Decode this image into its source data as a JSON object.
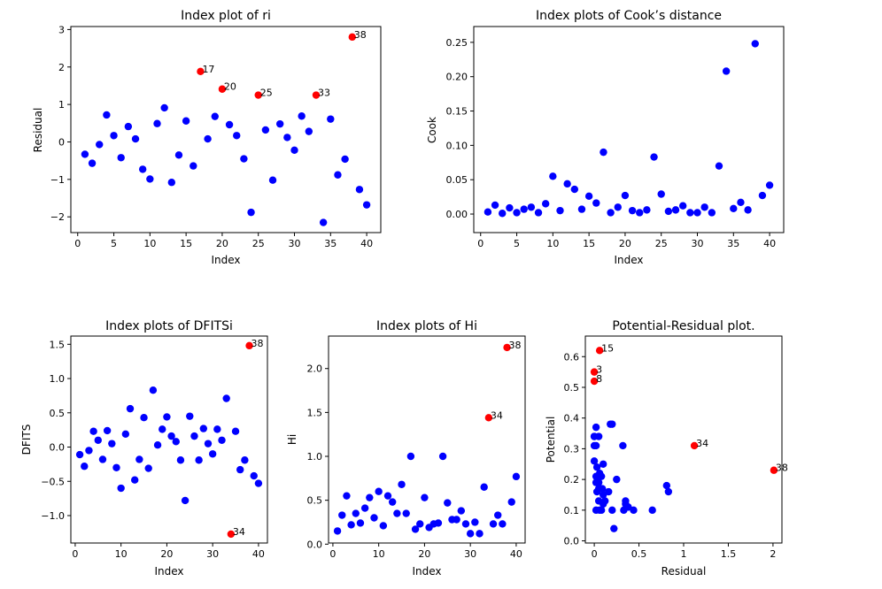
{
  "colors": {
    "normal": "#0000ff",
    "highlight": "#ff0000",
    "axis": "#000000"
  },
  "chart_data": [
    {
      "type": "scatter",
      "title": "Index plot of ri",
      "xlabel": "Index",
      "ylabel": "Residual",
      "xlim": [
        -0.95,
        41.95
      ],
      "ylim": [
        -2.42,
        3.08
      ],
      "xticks": [
        0,
        5,
        10,
        15,
        20,
        25,
        30,
        35,
        40
      ],
      "yticks": [
        -2,
        -1,
        0,
        1,
        2,
        3
      ],
      "ytick_labels": [
        "−2",
        "−1",
        "0",
        "1",
        "2",
        "3"
      ],
      "x": [
        1,
        2,
        3,
        4,
        5,
        6,
        7,
        8,
        9,
        10,
        11,
        12,
        13,
        14,
        15,
        16,
        17,
        18,
        19,
        20,
        21,
        22,
        23,
        24,
        25,
        26,
        27,
        28,
        29,
        30,
        31,
        32,
        33,
        34,
        35,
        36,
        37,
        38,
        39,
        40
      ],
      "y": [
        -0.33,
        -0.57,
        -0.07,
        0.72,
        0.17,
        -0.42,
        0.41,
        0.08,
        -0.73,
        -0.99,
        0.49,
        0.91,
        -1.08,
        -0.35,
        0.56,
        -0.64,
        1.88,
        0.08,
        0.68,
        1.41,
        0.46,
        0.17,
        -0.45,
        -1.88,
        1.25,
        0.32,
        -1.02,
        0.48,
        0.12,
        -0.22,
        0.69,
        0.28,
        1.25,
        -2.15,
        0.61,
        -0.88,
        -0.46,
        2.8,
        -1.27,
        -1.68
      ],
      "highlight_indices": [
        16,
        19,
        24,
        32,
        37
      ],
      "annotations": [
        {
          "x": 17,
          "y": 1.88,
          "text": "17"
        },
        {
          "x": 20,
          "y": 1.41,
          "text": "20"
        },
        {
          "x": 25,
          "y": 1.25,
          "text": "25"
        },
        {
          "x": 33,
          "y": 1.25,
          "text": "33"
        },
        {
          "x": 38,
          "y": 2.8,
          "text": "38"
        }
      ]
    },
    {
      "type": "scatter",
      "title": "Index plots of Cook’s distance",
      "xlabel": "Index",
      "ylabel": "Cook",
      "xlim": [
        -0.95,
        41.95
      ],
      "ylim": [
        -0.027,
        0.273
      ],
      "xticks": [
        0,
        5,
        10,
        15,
        20,
        25,
        30,
        35,
        40
      ],
      "yticks": [
        0.0,
        0.05,
        0.1,
        0.15,
        0.2,
        0.25
      ],
      "ytick_labels": [
        "0.00",
        "0.05",
        "0.10",
        "0.15",
        "0.20",
        "0.25"
      ],
      "x": [
        1,
        2,
        3,
        4,
        5,
        6,
        7,
        8,
        9,
        10,
        11,
        12,
        13,
        14,
        15,
        16,
        17,
        18,
        19,
        20,
        21,
        22,
        23,
        24,
        25,
        26,
        27,
        28,
        29,
        30,
        31,
        32,
        33,
        34,
        35,
        36,
        37,
        38,
        39,
        40
      ],
      "y": [
        0.003,
        0.013,
        0.001,
        0.009,
        0.002,
        0.007,
        0.01,
        0.002,
        0.015,
        0.055,
        0.005,
        0.044,
        0.036,
        0.007,
        0.026,
        0.016,
        0.09,
        0.002,
        0.01,
        0.027,
        0.005,
        0.002,
        0.006,
        0.083,
        0.029,
        0.004,
        0.006,
        0.012,
        0.002,
        0.002,
        0.01,
        0.002,
        0.07,
        0.208,
        0.008,
        0.017,
        0.006,
        0.248,
        0.027,
        0.042
      ],
      "highlight_indices": [],
      "annotations": []
    },
    {
      "type": "scatter",
      "title": "Index plots of DFITSi",
      "xlabel": "Index",
      "ylabel": "DFITS",
      "xlim": [
        -0.95,
        41.95
      ],
      "ylim": [
        -1.4,
        1.62
      ],
      "xticks": [
        0,
        10,
        20,
        30,
        40
      ],
      "yticks": [
        -1.0,
        -0.5,
        0.0,
        0.5,
        1.0,
        1.5
      ],
      "ytick_labels": [
        "−1.0",
        "−0.5",
        "0.0",
        "0.5",
        "1.0",
        "1.5"
      ],
      "x": [
        1,
        2,
        3,
        4,
        5,
        6,
        7,
        8,
        9,
        10,
        11,
        12,
        13,
        14,
        15,
        16,
        17,
        18,
        19,
        20,
        21,
        22,
        23,
        24,
        25,
        26,
        27,
        28,
        29,
        30,
        31,
        32,
        33,
        34,
        35,
        36,
        37,
        38,
        39,
        40
      ],
      "y": [
        -0.11,
        -0.28,
        -0.05,
        0.23,
        0.1,
        -0.18,
        0.24,
        0.05,
        -0.3,
        -0.6,
        0.19,
        0.56,
        -0.48,
        -0.18,
        0.43,
        -0.31,
        0.83,
        0.03,
        0.26,
        0.44,
        0.16,
        0.08,
        -0.19,
        -0.78,
        0.45,
        0.16,
        -0.19,
        0.27,
        0.05,
        -0.1,
        0.26,
        0.1,
        0.71,
        -1.27,
        0.23,
        -0.33,
        -0.19,
        1.48,
        -0.42,
        -0.53
      ],
      "highlight_indices": [
        33,
        37
      ],
      "annotations": [
        {
          "x": 34,
          "y": -1.27,
          "text": "34"
        },
        {
          "x": 38,
          "y": 1.48,
          "text": "38"
        }
      ]
    },
    {
      "type": "scatter",
      "title": "Index plots of Hi",
      "xlabel": "Index",
      "ylabel": "Hi",
      "xlim": [
        -0.95,
        41.95
      ],
      "ylim": [
        0.013,
        2.37
      ],
      "xticks": [
        0,
        10,
        20,
        30,
        40
      ],
      "yticks": [
        0.0,
        0.5,
        1.0,
        1.5,
        2.0
      ],
      "ytick_labels": [
        "0.0",
        "0.5",
        "1.0",
        "1.5",
        "2.0"
      ],
      "x": [
        1,
        2,
        3,
        4,
        5,
        6,
        7,
        8,
        9,
        10,
        11,
        12,
        13,
        14,
        15,
        16,
        17,
        18,
        19,
        20,
        21,
        22,
        23,
        24,
        25,
        26,
        27,
        28,
        29,
        30,
        31,
        32,
        33,
        34,
        35,
        36,
        37,
        38,
        39,
        40
      ],
      "y": [
        0.15,
        0.33,
        0.55,
        0.22,
        0.35,
        0.24,
        0.41,
        0.53,
        0.3,
        0.6,
        0.21,
        0.55,
        0.48,
        0.35,
        0.68,
        0.35,
        1.0,
        0.17,
        0.23,
        0.53,
        0.19,
        0.23,
        0.24,
        1.0,
        0.47,
        0.28,
        0.28,
        0.38,
        0.23,
        0.12,
        0.25,
        0.12,
        0.65,
        1.44,
        0.23,
        0.33,
        0.23,
        2.24,
        0.48,
        0.77
      ],
      "highlight_indices": [
        33,
        37
      ],
      "annotations": [
        {
          "x": 34,
          "y": 1.44,
          "text": "34"
        },
        {
          "x": 38,
          "y": 2.24,
          "text": "38"
        }
      ]
    },
    {
      "type": "scatter",
      "title": "Potential-Residual plot.",
      "xlabel": "Residual",
      "ylabel": "Potential",
      "xlim": [
        -0.1,
        2.1
      ],
      "ylim": [
        -0.007,
        0.667
      ],
      "xticks": [
        0.0,
        0.5,
        1.0,
        1.5,
        2.0
      ],
      "yticks": [
        0.0,
        0.1,
        0.2,
        0.3,
        0.4,
        0.5,
        0.6
      ],
      "ytick_labels": [
        "0.0",
        "0.1",
        "0.2",
        "0.3",
        "0.4",
        "0.5",
        "0.6"
      ],
      "x": [
        0.06,
        0.0,
        0.0,
        0.0,
        0.0,
        0.02,
        0.0,
        0.02,
        0.05,
        0.1,
        0.0,
        0.03,
        0.06,
        0.08,
        0.02,
        0.05,
        0.09,
        0.16,
        0.03,
        0.05,
        0.1,
        0.12,
        0.06,
        0.2,
        0.08,
        0.1,
        0.18,
        0.2,
        0.25,
        0.32,
        0.35,
        0.35,
        0.38,
        0.44,
        0.65,
        0.81,
        0.83,
        0.22,
        0.02,
        0.05,
        0.33,
        0.02,
        1.12,
        2.01
      ],
      "y": [
        0.62,
        0.55,
        0.52,
        0.34,
        0.34,
        0.37,
        0.31,
        0.31,
        0.34,
        0.25,
        0.26,
        0.24,
        0.22,
        0.21,
        0.19,
        0.19,
        0.17,
        0.16,
        0.16,
        0.13,
        0.15,
        0.13,
        0.1,
        0.1,
        0.1,
        0.12,
        0.38,
        0.38,
        0.2,
        0.31,
        0.13,
        0.12,
        0.11,
        0.1,
        0.1,
        0.18,
        0.16,
        0.04,
        0.21,
        0.17,
        0.1,
        0.1,
        0.31,
        0.23
      ],
      "highlight_indices": [
        0,
        1,
        2,
        42,
        43
      ],
      "annotations": [
        {
          "x": 0.06,
          "y": 0.62,
          "text": "15"
        },
        {
          "x": 0.0,
          "y": 0.55,
          "text": "3"
        },
        {
          "x": 0.0,
          "y": 0.52,
          "text": "8"
        },
        {
          "x": 1.12,
          "y": 0.31,
          "text": "34"
        },
        {
          "x": 2.01,
          "y": 0.23,
          "text": "38"
        }
      ]
    }
  ]
}
